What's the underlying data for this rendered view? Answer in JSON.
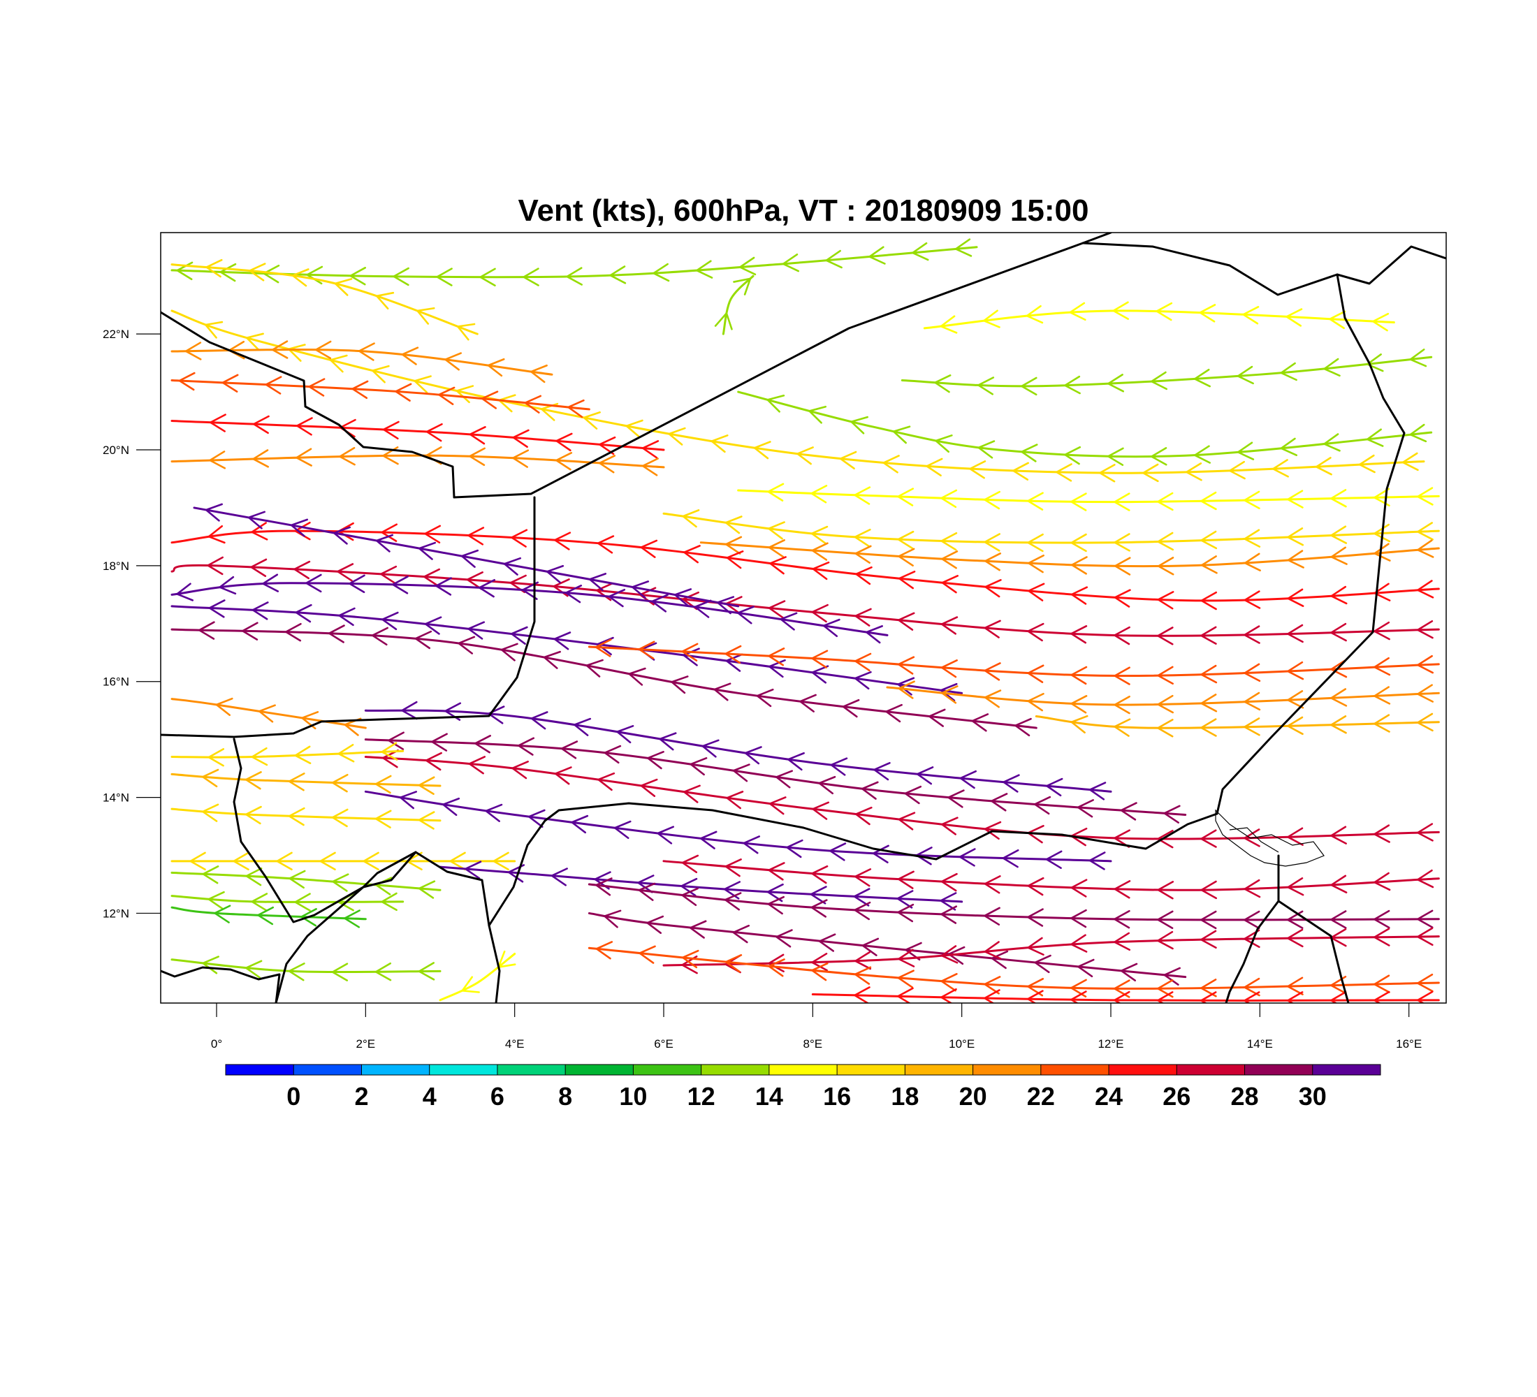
{
  "title": "Vent (kts), 600hPa, VT : 20180909  15:00",
  "axes": {
    "x_ticks": [
      {
        "value": 0,
        "label": "0°"
      },
      {
        "value": 2,
        "label": "2°E"
      },
      {
        "value": 4,
        "label": "4°E"
      },
      {
        "value": 6,
        "label": "6°E"
      },
      {
        "value": 8,
        "label": "8°E"
      },
      {
        "value": 10,
        "label": "10°E"
      },
      {
        "value": 12,
        "label": "12°E"
      },
      {
        "value": 14,
        "label": "14°E"
      },
      {
        "value": 16,
        "label": "16°E"
      }
    ],
    "y_ticks": [
      {
        "value": 12,
        "label": "12°N"
      },
      {
        "value": 14,
        "label": "14°N"
      },
      {
        "value": 16,
        "label": "16°N"
      },
      {
        "value": 18,
        "label": "18°N"
      },
      {
        "value": 20,
        "label": "20°N"
      },
      {
        "value": 22,
        "label": "22°N"
      }
    ],
    "lon_range": [
      -0.75,
      16.5
    ],
    "lat_range": [
      10.45,
      23.75
    ]
  },
  "colorbar": {
    "labels": [
      "0",
      "2",
      "4",
      "6",
      "8",
      "10",
      "12",
      "14",
      "16",
      "18",
      "20",
      "22",
      "24",
      "26",
      "28",
      "30"
    ],
    "colors": [
      "#0000ff",
      "#0050ff",
      "#00b4ff",
      "#00e6dc",
      "#00d278",
      "#00b432",
      "#3cc314",
      "#96dc00",
      "#ffff00",
      "#ffdc00",
      "#ffb400",
      "#ff8c00",
      "#ff5000",
      "#ff0f0f",
      "#cd0032",
      "#910055",
      "#5a0096"
    ]
  },
  "chart_data": {
    "type": "streamline",
    "variable": "Vent (kts)",
    "level": "600hPa",
    "valid_time": "20180909  15:00",
    "units": "kts",
    "streamlines": [
      {
        "speed": 16,
        "points": [
          [
            16.2,
            19.8
          ],
          [
            12.0,
            19.6
          ],
          [
            8.0,
            19.9
          ],
          [
            4.0,
            20.8
          ],
          [
            0.5,
            21.9
          ],
          [
            -0.6,
            22.4
          ]
        ]
      },
      {
        "speed": 14,
        "points": [
          [
            15.8,
            22.2
          ],
          [
            12.0,
            22.4
          ],
          [
            9.5,
            22.1
          ]
        ]
      },
      {
        "speed": 12,
        "points": [
          [
            16.3,
            21.6
          ],
          [
            14.0,
            21.3
          ],
          [
            11.0,
            21.1
          ],
          [
            9.2,
            21.2
          ]
        ]
      },
      {
        "speed": 12,
        "points": [
          [
            16.3,
            20.3
          ],
          [
            13.0,
            19.9
          ],
          [
            10.5,
            20.0
          ],
          [
            8.8,
            20.4
          ],
          [
            7.0,
            21.0
          ]
        ]
      },
      {
        "speed": 12,
        "points": [
          [
            10.2,
            23.5
          ],
          [
            7.5,
            23.2
          ],
          [
            5.0,
            23.0
          ],
          [
            2.0,
            23.0
          ],
          [
            -0.6,
            23.1
          ]
        ]
      },
      {
        "speed": 16,
        "points": [
          [
            3.5,
            22.0
          ],
          [
            1.5,
            22.9
          ],
          [
            -0.6,
            23.2
          ]
        ]
      },
      {
        "speed": 20,
        "points": [
          [
            4.5,
            21.3
          ],
          [
            2.0,
            21.7
          ],
          [
            -0.6,
            21.7
          ]
        ]
      },
      {
        "speed": 22,
        "points": [
          [
            5.0,
            20.7
          ],
          [
            2.5,
            21.0
          ],
          [
            -0.6,
            21.2
          ]
        ]
      },
      {
        "speed": 24,
        "points": [
          [
            6.0,
            20.0
          ],
          [
            3.0,
            20.3
          ],
          [
            -0.6,
            20.5
          ]
        ]
      },
      {
        "speed": 20,
        "points": [
          [
            6.0,
            19.7
          ],
          [
            3.0,
            19.9
          ],
          [
            -0.6,
            19.8
          ]
        ]
      },
      {
        "speed": 14,
        "points": [
          [
            16.4,
            19.2
          ],
          [
            12.0,
            19.1
          ],
          [
            9.0,
            19.2
          ],
          [
            7.0,
            19.3
          ]
        ]
      },
      {
        "speed": 16,
        "points": [
          [
            16.4,
            18.6
          ],
          [
            12.0,
            18.4
          ],
          [
            8.5,
            18.5
          ],
          [
            6.0,
            18.9
          ]
        ]
      },
      {
        "speed": 20,
        "points": [
          [
            16.4,
            18.3
          ],
          [
            13.0,
            18.0
          ],
          [
            10.0,
            18.1
          ],
          [
            6.5,
            18.4
          ]
        ]
      },
      {
        "speed": 24,
        "points": [
          [
            16.4,
            17.6
          ],
          [
            13.0,
            17.4
          ],
          [
            9.0,
            17.8
          ],
          [
            5.0,
            18.4
          ],
          [
            1.0,
            18.6
          ],
          [
            -0.6,
            18.4
          ]
        ]
      },
      {
        "speed": 26,
        "points": [
          [
            16.4,
            16.9
          ],
          [
            12.0,
            16.8
          ],
          [
            8.0,
            17.2
          ],
          [
            4.0,
            17.7
          ],
          [
            0.0,
            18.0
          ],
          [
            -0.6,
            17.9
          ]
        ]
      },
      {
        "speed": 30,
        "points": [
          [
            7.0,
            17.3
          ],
          [
            4.0,
            18.0
          ],
          [
            1.0,
            18.7
          ],
          [
            -0.3,
            19.0
          ]
        ]
      },
      {
        "speed": 30,
        "points": [
          [
            9.0,
            16.8
          ],
          [
            5.0,
            17.5
          ],
          [
            1.0,
            17.7
          ],
          [
            -0.6,
            17.5
          ]
        ]
      },
      {
        "speed": 30,
        "points": [
          [
            10.0,
            15.8
          ],
          [
            6.0,
            16.5
          ],
          [
            2.0,
            17.1
          ],
          [
            -0.6,
            17.3
          ]
        ]
      },
      {
        "speed": 28,
        "points": [
          [
            11.0,
            15.2
          ],
          [
            7.0,
            15.8
          ],
          [
            3.0,
            16.7
          ],
          [
            -0.6,
            16.9
          ]
        ]
      },
      {
        "speed": 22,
        "points": [
          [
            16.4,
            16.3
          ],
          [
            12.0,
            16.1
          ],
          [
            8.0,
            16.4
          ],
          [
            5.0,
            16.6
          ]
        ]
      },
      {
        "speed": 20,
        "points": [
          [
            16.4,
            15.8
          ],
          [
            12.0,
            15.6
          ],
          [
            9.0,
            15.9
          ]
        ]
      },
      {
        "speed": 18,
        "points": [
          [
            16.4,
            15.3
          ],
          [
            12.5,
            15.2
          ],
          [
            11.0,
            15.4
          ]
        ]
      },
      {
        "speed": 30,
        "points": [
          [
            12.0,
            14.1
          ],
          [
            8.0,
            14.6
          ],
          [
            4.0,
            15.4
          ],
          [
            2.0,
            15.5
          ]
        ]
      },
      {
        "speed": 28,
        "points": [
          [
            13.0,
            13.7
          ],
          [
            9.0,
            14.1
          ],
          [
            5.0,
            14.8
          ],
          [
            2.0,
            15.0
          ]
        ]
      },
      {
        "speed": 26,
        "points": [
          [
            16.4,
            13.4
          ],
          [
            12.0,
            13.3
          ],
          [
            8.0,
            13.8
          ],
          [
            4.0,
            14.5
          ],
          [
            2.0,
            14.7
          ]
        ]
      },
      {
        "speed": 30,
        "points": [
          [
            12.0,
            12.9
          ],
          [
            8.0,
            13.1
          ],
          [
            4.0,
            13.7
          ],
          [
            2.0,
            14.1
          ]
        ]
      },
      {
        "speed": 20,
        "points": [
          [
            2.0,
            15.2
          ],
          [
            0.0,
            15.6
          ],
          [
            -0.6,
            15.7
          ]
        ]
      },
      {
        "speed": 16,
        "points": [
          [
            2.5,
            14.8
          ],
          [
            0.5,
            14.7
          ],
          [
            -0.6,
            14.7
          ]
        ]
      },
      {
        "speed": 18,
        "points": [
          [
            3.0,
            14.2
          ],
          [
            0.5,
            14.3
          ],
          [
            -0.6,
            14.4
          ]
        ]
      },
      {
        "speed": 16,
        "points": [
          [
            3.0,
            13.6
          ],
          [
            0.5,
            13.7
          ],
          [
            -0.6,
            13.8
          ]
        ]
      },
      {
        "speed": 16,
        "points": [
          [
            4.0,
            12.9
          ],
          [
            1.5,
            12.9
          ],
          [
            -0.6,
            12.9
          ]
        ]
      },
      {
        "speed": 12,
        "points": [
          [
            3.0,
            12.4
          ],
          [
            1.0,
            12.6
          ],
          [
            -0.6,
            12.7
          ]
        ]
      },
      {
        "speed": 12,
        "points": [
          [
            2.5,
            12.2
          ],
          [
            0.5,
            12.2
          ],
          [
            -0.6,
            12.3
          ]
        ]
      },
      {
        "speed": 10,
        "points": [
          [
            2.0,
            11.9
          ],
          [
            0.0,
            12.0
          ],
          [
            -0.6,
            12.1
          ]
        ]
      },
      {
        "speed": 12,
        "points": [
          [
            3.0,
            11.0
          ],
          [
            1.0,
            11.0
          ],
          [
            -0.6,
            11.2
          ]
        ]
      },
      {
        "speed": 30,
        "points": [
          [
            10.0,
            12.2
          ],
          [
            7.0,
            12.4
          ],
          [
            4.0,
            12.7
          ],
          [
            3.0,
            12.8
          ]
        ]
      },
      {
        "speed": 28,
        "points": [
          [
            16.4,
            11.9
          ],
          [
            12.0,
            11.9
          ],
          [
            8.0,
            12.1
          ],
          [
            5.0,
            12.5
          ]
        ]
      },
      {
        "speed": 26,
        "points": [
          [
            16.4,
            12.6
          ],
          [
            13.0,
            12.4
          ],
          [
            9.0,
            12.6
          ],
          [
            6.0,
            12.9
          ]
        ]
      },
      {
        "speed": 28,
        "points": [
          [
            13.0,
            10.9
          ],
          [
            9.0,
            11.4
          ],
          [
            6.0,
            11.8
          ],
          [
            5.0,
            12.0
          ]
        ]
      },
      {
        "speed": 26,
        "points": [
          [
            16.4,
            11.6
          ],
          [
            12.0,
            11.5
          ],
          [
            9.0,
            11.2
          ],
          [
            6.0,
            11.1
          ]
        ]
      },
      {
        "speed": 22,
        "points": [
          [
            16.4,
            10.8
          ],
          [
            12.0,
            10.7
          ],
          [
            9.0,
            10.9
          ],
          [
            5.0,
            11.4
          ]
        ]
      },
      {
        "speed": 24,
        "points": [
          [
            16.4,
            10.5
          ],
          [
            12.0,
            10.5
          ],
          [
            8.0,
            10.6
          ]
        ]
      },
      {
        "speed": 14,
        "points": [
          [
            4.0,
            11.3
          ],
          [
            3.5,
            10.8
          ],
          [
            3.0,
            10.5
          ]
        ]
      },
      {
        "speed": 12,
        "points": [
          [
            6.8,
            22.0
          ],
          [
            6.9,
            22.6
          ],
          [
            7.2,
            23.0
          ]
        ]
      }
    ]
  }
}
